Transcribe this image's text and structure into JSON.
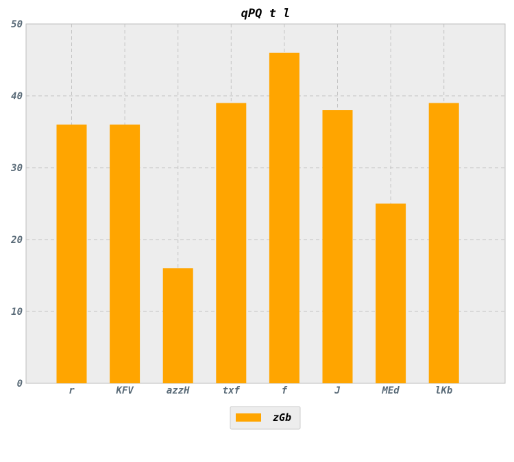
{
  "chart_data": {
    "type": "bar",
    "title": "qPQ t  l",
    "categories": [
      "r",
      "KFV",
      "azzH",
      "txf",
      "f",
      "J",
      "MEd",
      "lKb"
    ],
    "series": [
      {
        "name": "zGb",
        "values": [
          36,
          36,
          16,
          39,
          46,
          38,
          25,
          39
        ],
        "color": "#ffa500"
      }
    ],
    "xlabel": "",
    "ylabel": "",
    "ylim": [
      0,
      50
    ],
    "yticks": [
      0,
      10,
      20,
      30,
      40,
      50
    ],
    "grid": true,
    "legend_position": "bottom-center",
    "background": "#ededed"
  }
}
